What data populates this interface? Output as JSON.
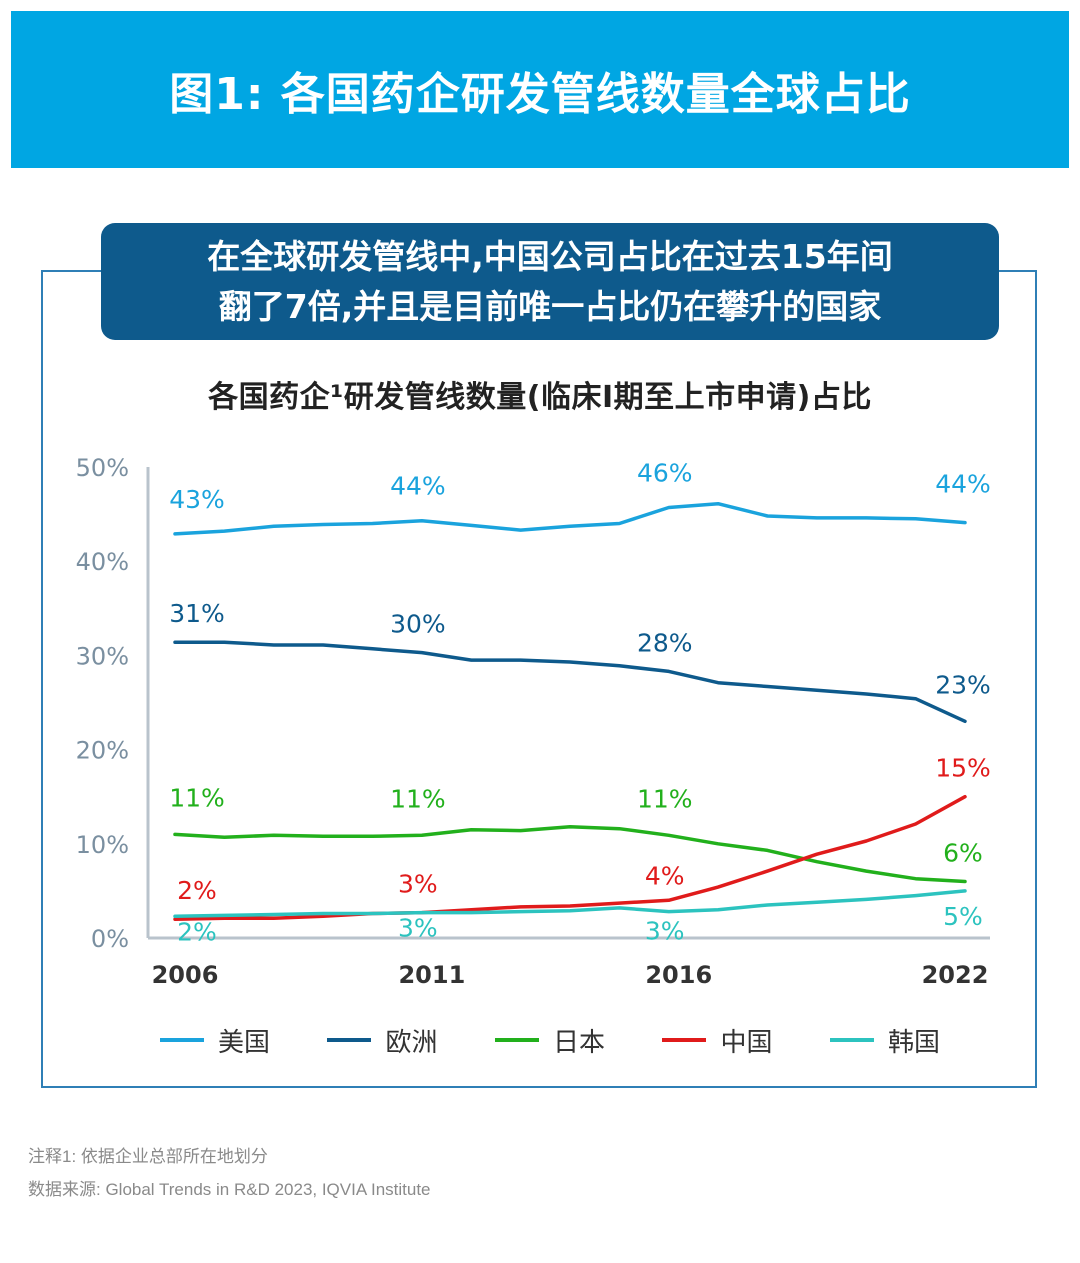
{
  "header": {
    "title": "图1: 各国药企研发管线数量全球占比"
  },
  "callout": {
    "line1": "在全球研发管线中,中国公司占比在过去15年间",
    "line2": "翻了7倍,并且是目前唯一占比仍在攀升的国家"
  },
  "chart_data": {
    "type": "line",
    "title": "各国药企¹研发管线数量(临床I期至上市申请)占比",
    "x": [
      2006,
      2007,
      2008,
      2009,
      2010,
      2011,
      2012,
      2013,
      2014,
      2015,
      2016,
      2017,
      2018,
      2019,
      2020,
      2021,
      2022
    ],
    "x_tick_labels": [
      "2006",
      "2011",
      "2016",
      "2022"
    ],
    "x_tick_values": [
      2006,
      2011,
      2016,
      2022
    ],
    "ylim": [
      0,
      50
    ],
    "y_ticks": [
      0,
      10,
      20,
      30,
      40,
      50
    ],
    "y_tick_labels": [
      "0%",
      "10%",
      "20%",
      "30%",
      "40%",
      "50%"
    ],
    "series": [
      {
        "name": "美国",
        "color": "#1aa3dd",
        "values": [
          42.9,
          43.2,
          43.7,
          43.9,
          44.0,
          44.3,
          43.8,
          43.3,
          43.7,
          44.0,
          45.7,
          46.1,
          44.8,
          44.6,
          44.6,
          44.5,
          44.1
        ],
        "labels": [
          {
            "x": 2006,
            "text": "43%"
          },
          {
            "x": 2011,
            "text": "44%"
          },
          {
            "x": 2016,
            "text": "46%"
          },
          {
            "x": 2022,
            "text": "44%"
          }
        ]
      },
      {
        "name": "欧洲",
        "color": "#0e5a8c",
        "values": [
          31.4,
          31.4,
          31.1,
          31.1,
          30.7,
          30.3,
          29.5,
          29.5,
          29.3,
          28.9,
          28.3,
          27.1,
          26.7,
          26.3,
          25.9,
          25.4,
          23.0
        ],
        "labels": [
          {
            "x": 2006,
            "text": "31%"
          },
          {
            "x": 2011,
            "text": "30%"
          },
          {
            "x": 2016,
            "text": "28%"
          },
          {
            "x": 2022,
            "text": "23%"
          }
        ]
      },
      {
        "name": "日本",
        "color": "#22b01c",
        "values": [
          11.0,
          10.7,
          10.9,
          10.8,
          10.8,
          10.9,
          11.5,
          11.4,
          11.8,
          11.6,
          10.9,
          10.0,
          9.3,
          8.1,
          7.1,
          6.3,
          6.0
        ],
        "labels": [
          {
            "x": 2006,
            "text": "11%"
          },
          {
            "x": 2011,
            "text": "11%"
          },
          {
            "x": 2016,
            "text": "11%"
          },
          {
            "x": 2022,
            "text": "6%"
          }
        ]
      },
      {
        "name": "中国",
        "color": "#e01b1b",
        "values": [
          2.0,
          2.1,
          2.1,
          2.3,
          2.6,
          2.7,
          3.0,
          3.3,
          3.4,
          3.7,
          4.0,
          5.4,
          7.1,
          8.9,
          10.3,
          12.1,
          15.0
        ],
        "labels": [
          {
            "x": 2006,
            "text": "2%"
          },
          {
            "x": 2011,
            "text": "3%"
          },
          {
            "x": 2016,
            "text": "4%"
          },
          {
            "x": 2022,
            "text": "15%"
          }
        ]
      },
      {
        "name": "韩国",
        "color": "#2cc3bf",
        "values": [
          2.3,
          2.4,
          2.5,
          2.6,
          2.6,
          2.7,
          2.7,
          2.8,
          2.9,
          3.2,
          2.8,
          3.0,
          3.5,
          3.8,
          4.1,
          4.5,
          5.0
        ],
        "labels": [
          {
            "x": 2006,
            "text": "2%"
          },
          {
            "x": 2011,
            "text": "3%"
          },
          {
            "x": 2016,
            "text": "3%"
          },
          {
            "x": 2022,
            "text": "5%"
          }
        ]
      }
    ],
    "legend": {
      "position": "bottom",
      "entries": [
        "美国",
        "欧洲",
        "日本",
        "中国",
        "韩国"
      ]
    }
  },
  "footnotes": {
    "note1": "注释1: 依据企业总部所在地划分",
    "source": "数据来源: Global Trends in R&D 2023, IQVIA Institute"
  }
}
